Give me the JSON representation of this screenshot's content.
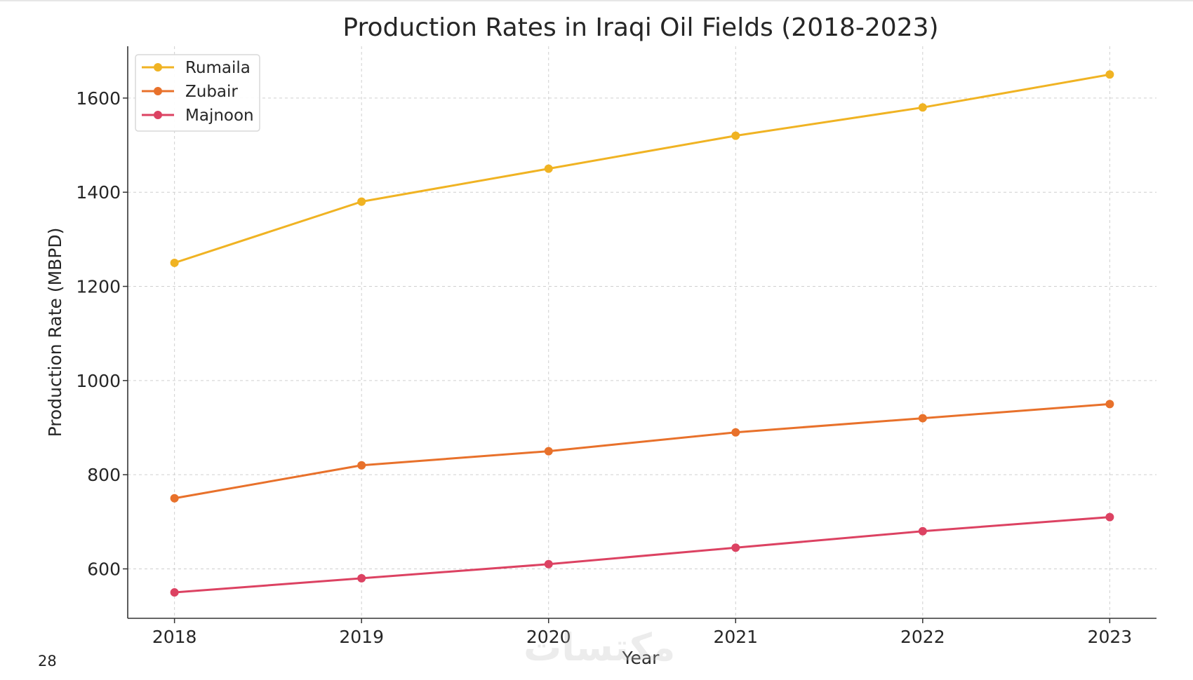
{
  "page_number": "28",
  "watermark_text": "مكتسات",
  "chart_data": {
    "type": "line",
    "title": "Production Rates in Iraqi Oil Fields (2018-2023)",
    "xlabel": "Year",
    "ylabel": "Production Rate (MBPD)",
    "categories": [
      "2018",
      "2019",
      "2020",
      "2021",
      "2022",
      "2023"
    ],
    "x": [
      2018,
      2019,
      2020,
      2021,
      2022,
      2023
    ],
    "xlim": [
      2017.75,
      2023.25
    ],
    "ylim": [
      495,
      1710
    ],
    "yticks": [
      600,
      800,
      1000,
      1200,
      1400,
      1600
    ],
    "grid": true,
    "grid_style": "dashed",
    "legend_position": "upper-left",
    "marker": "circle",
    "series": [
      {
        "name": "Rumaila",
        "color": "#f0b323",
        "values": [
          1250,
          1380,
          1450,
          1520,
          1580,
          1650
        ]
      },
      {
        "name": "Zubair",
        "color": "#e8712b",
        "values": [
          750,
          820,
          850,
          890,
          920,
          950
        ]
      },
      {
        "name": "Majnoon",
        "color": "#dc4262",
        "values": [
          550,
          580,
          610,
          645,
          680,
          710
        ]
      }
    ]
  }
}
